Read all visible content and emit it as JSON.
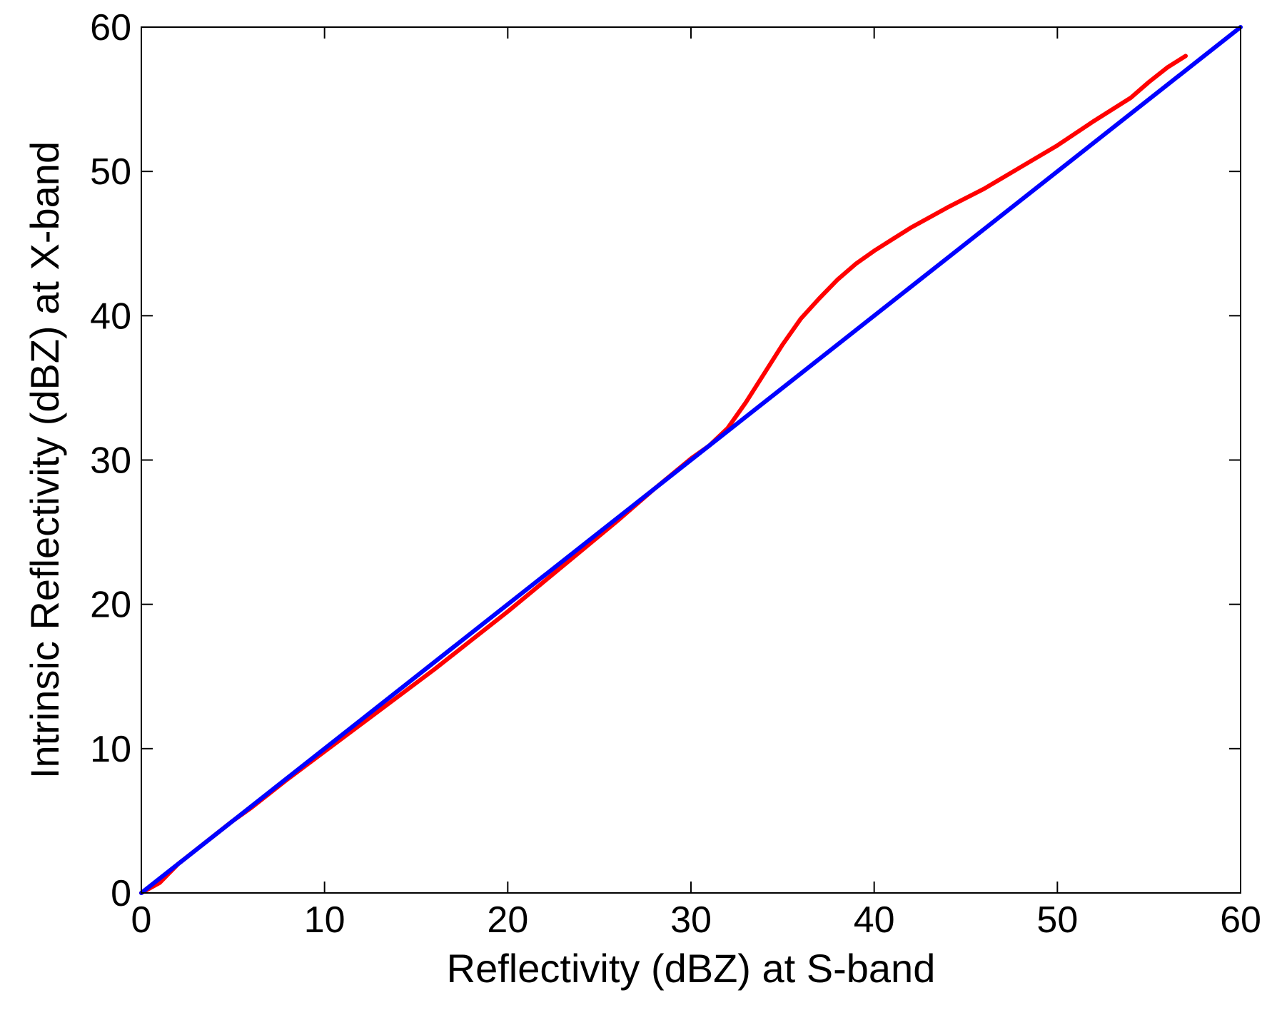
{
  "chart_data": {
    "type": "line",
    "title": "",
    "xlabel": "Reflectivity (dBZ) at S-band",
    "ylabel": "Intrinsic Reflectivity (dBZ) at X-band",
    "xlim": [
      0,
      60
    ],
    "ylim": [
      0,
      60
    ],
    "xticks": [
      0,
      10,
      20,
      30,
      40,
      50,
      60
    ],
    "yticks": [
      0,
      10,
      20,
      30,
      40,
      50,
      60
    ],
    "grid": false,
    "legend": "none",
    "series": [
      {
        "color": "#ff0000",
        "x": [
          0,
          1,
          2,
          3,
          4,
          5,
          6,
          8,
          10,
          12,
          14,
          16,
          18,
          20,
          22,
          24,
          26,
          28,
          30,
          31,
          32,
          33,
          34,
          35,
          36,
          37,
          38,
          39,
          40,
          41,
          42,
          44,
          46,
          48,
          50,
          52,
          54,
          55,
          56,
          57
        ],
        "y": [
          0,
          0.7,
          2,
          3,
          4,
          5,
          5.9,
          7.9,
          9.8,
          11.7,
          13.6,
          15.5,
          17.5,
          19.5,
          21.6,
          23.7,
          25.8,
          28,
          30.1,
          31,
          32.2,
          34,
          36,
          38,
          39.8,
          41.2,
          42.5,
          43.6,
          44.5,
          45.3,
          46.1,
          47.5,
          48.8,
          50.3,
          51.8,
          53.5,
          55.1,
          56.2,
          57.2,
          58
        ]
      },
      {
        "color": "#0000ff",
        "x": [
          0,
          60
        ],
        "y": [
          0,
          60
        ]
      }
    ]
  }
}
